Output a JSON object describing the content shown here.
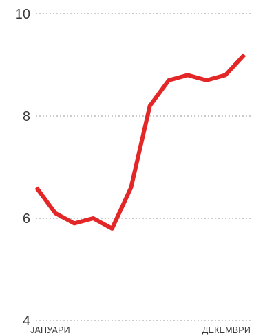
{
  "chart_data": {
    "type": "line",
    "title": "",
    "xlabel": "",
    "ylabel": "",
    "ylim": [
      4,
      10
    ],
    "yticks": [
      "4",
      "6",
      "8",
      "10"
    ],
    "grid": true,
    "x_labels": [
      "ЈАНУАРИ",
      "ДЕКЕМВРИ"
    ],
    "x": [
      1,
      2,
      3,
      4,
      5,
      6,
      7,
      8,
      9,
      10,
      11,
      12
    ],
    "series": [
      {
        "values": [
          6.6,
          6.1,
          5.9,
          6.0,
          5.8,
          6.6,
          8.2,
          8.7,
          8.8,
          8.7,
          8.8,
          9.2
        ],
        "color": "#e32626"
      }
    ]
  }
}
